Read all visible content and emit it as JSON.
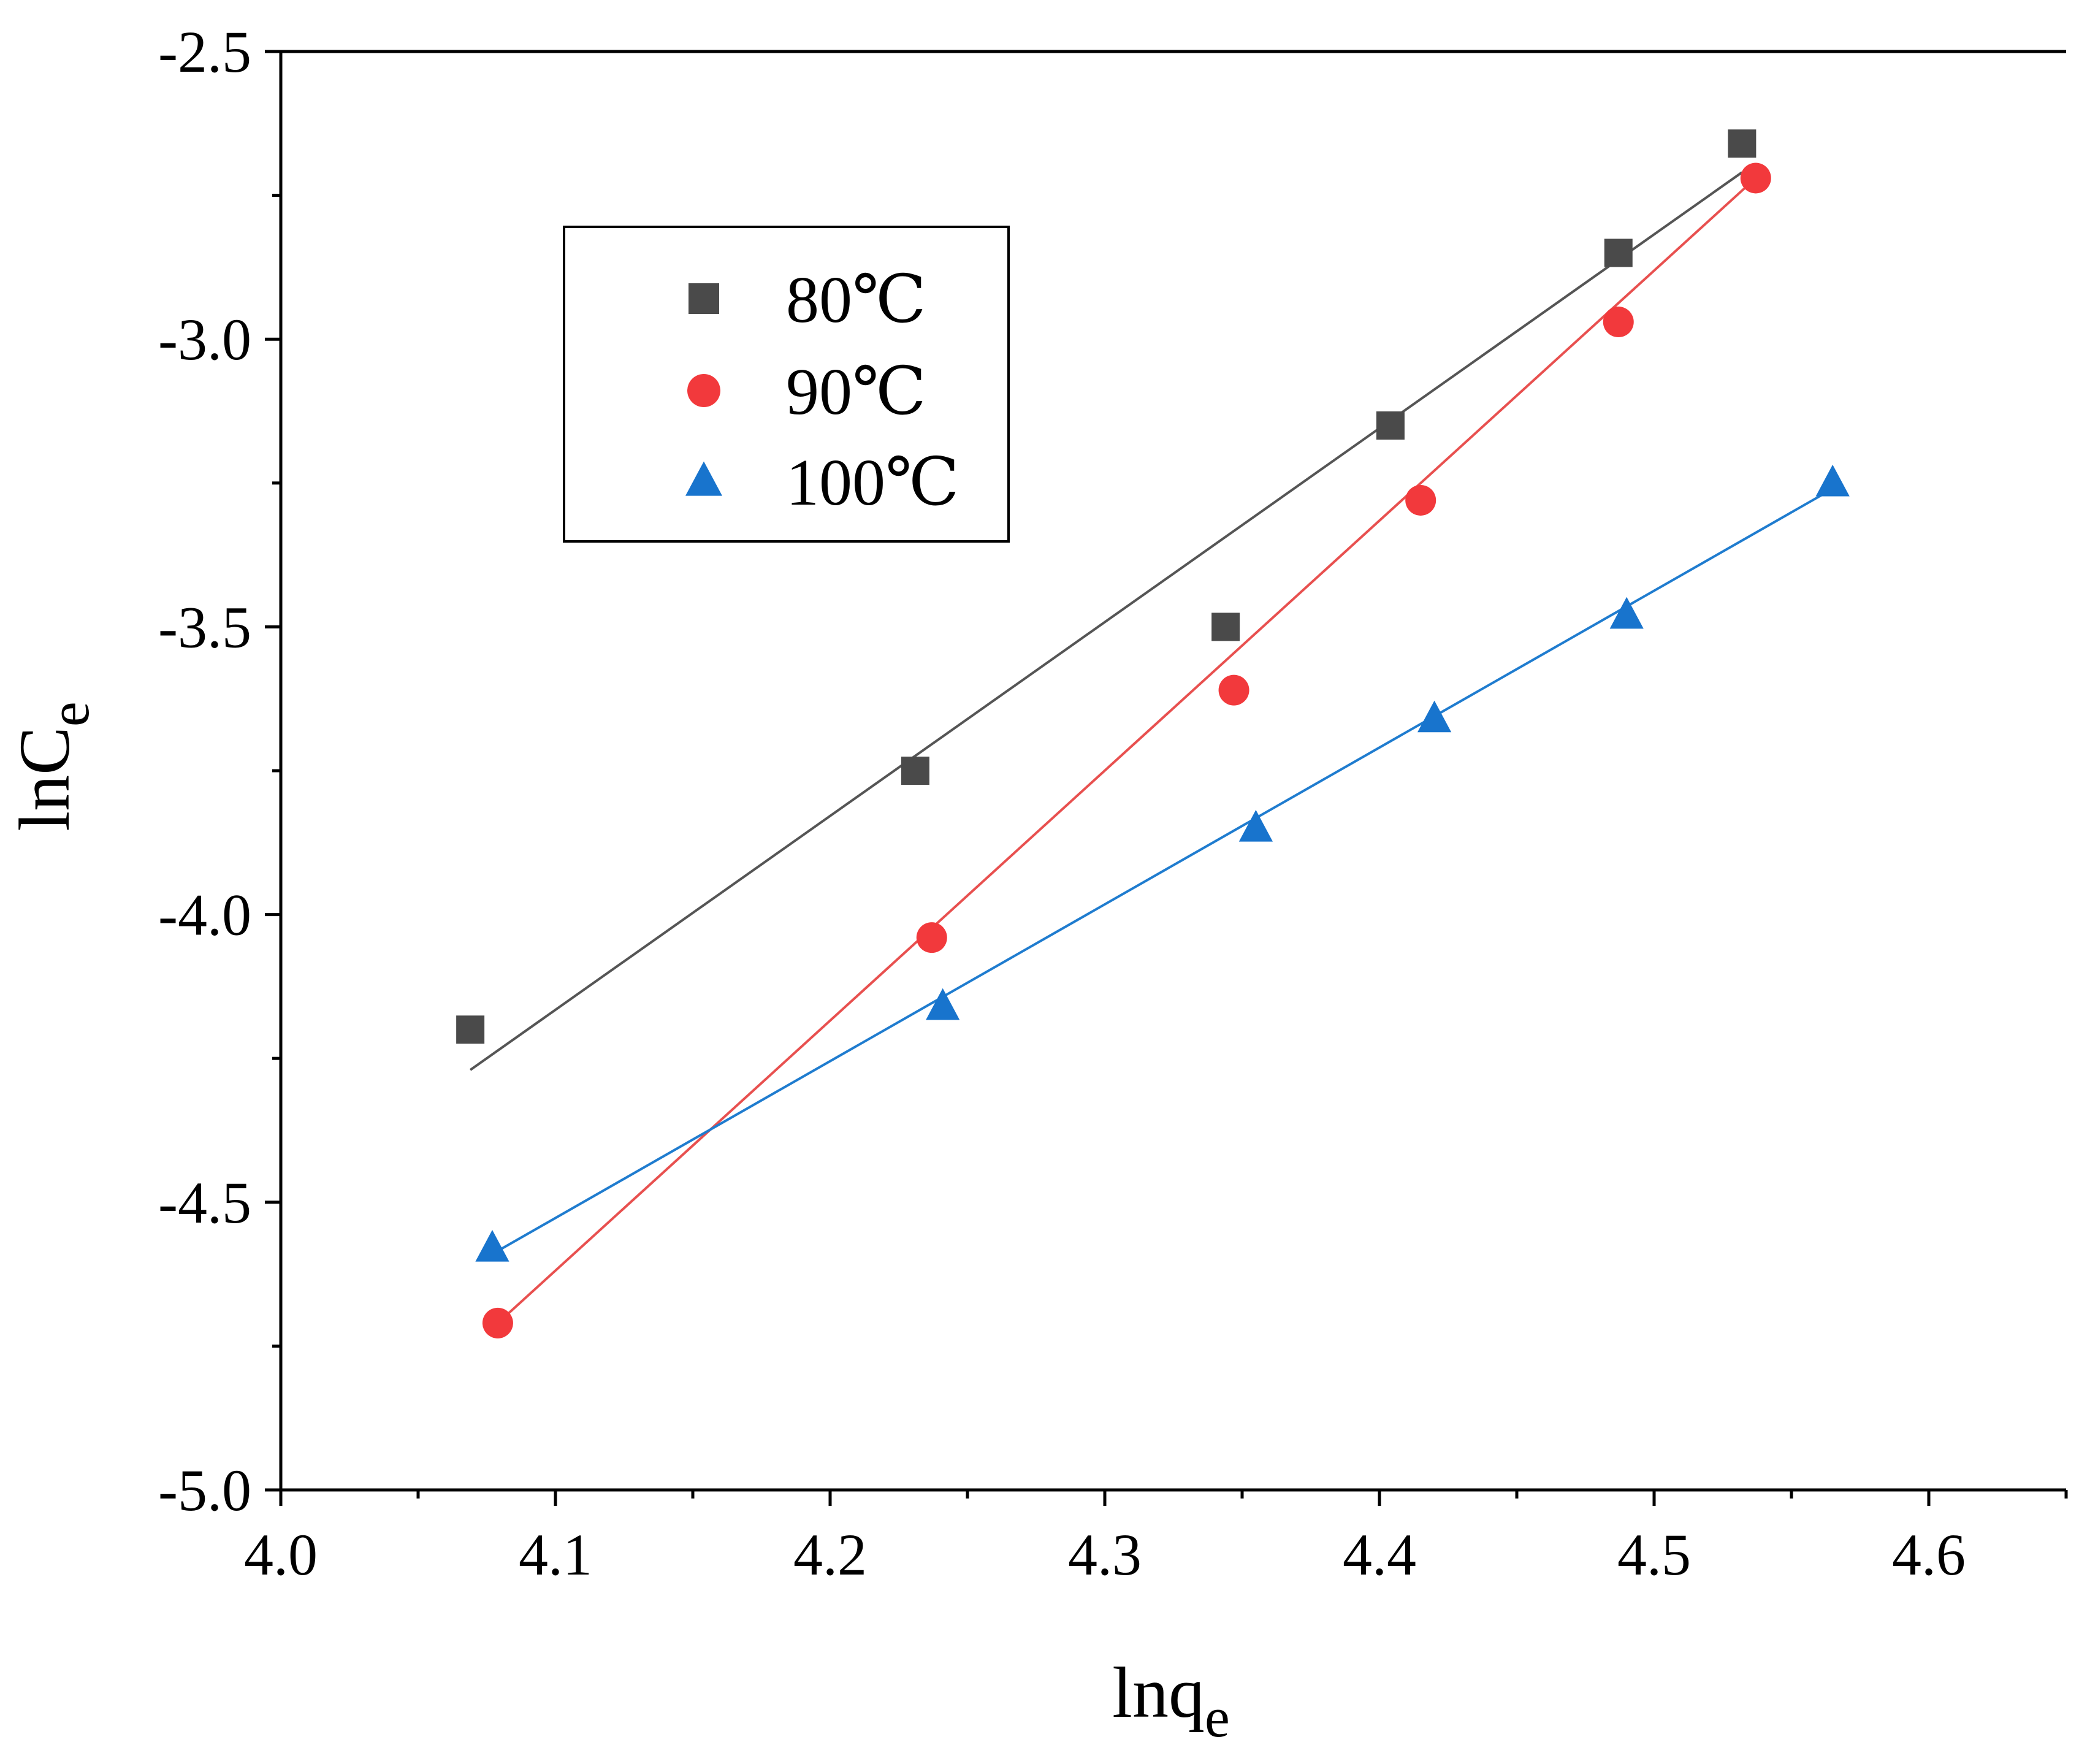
{
  "chart_data": {
    "type": "scatter",
    "title": "",
    "xlabel": "lnq",
    "xlabel_sub": "e",
    "ylabel": "lnC",
    "ylabel_sub": "e",
    "xlim": [
      4.0,
      4.65
    ],
    "ylim": [
      -5.0,
      -2.5
    ],
    "x_ticks": [
      4.0,
      4.1,
      4.2,
      4.3,
      4.4,
      4.5,
      4.6
    ],
    "y_ticks": [
      -5.0,
      -4.5,
      -4.0,
      -3.5,
      -3.0,
      -2.5
    ],
    "x_tick_labels": [
      "4.0",
      "4.1",
      "4.2",
      "4.3",
      "4.4",
      "4.5",
      "4.6"
    ],
    "y_tick_labels": [
      "-5.0",
      "-4.5",
      "-4.0",
      "-3.5",
      "-3.0",
      "-2.5"
    ],
    "grid": false,
    "legend_position": "top-left",
    "series": [
      {
        "name": "80℃",
        "marker": "square",
        "color": "#4a4a4a",
        "line_color": "#555555",
        "x": [
          4.069,
          4.231,
          4.344,
          4.404,
          4.487,
          4.532
        ],
        "y": [
          -4.2,
          -3.75,
          -3.5,
          -3.15,
          -2.85,
          -2.66
        ],
        "fit": {
          "x": [
            4.069,
            4.532
          ],
          "y": [
            -4.27,
            -2.71
          ]
        }
      },
      {
        "name": "90℃",
        "marker": "circle",
        "color": "#f2393c",
        "line_color": "#e8504f",
        "x": [
          4.079,
          4.237,
          4.347,
          4.415,
          4.487,
          4.537
        ],
        "y": [
          -4.71,
          -4.04,
          -3.61,
          -3.28,
          -2.97,
          -2.72
        ],
        "fit": {
          "x": [
            4.079,
            4.537
          ],
          "y": [
            -4.71,
            -2.72
          ]
        }
      },
      {
        "name": "100℃",
        "marker": "triangle",
        "color": "#1874cd",
        "line_color": "#1f7ccf",
        "x": [
          4.077,
          4.241,
          4.355,
          4.42,
          4.49,
          4.565
        ],
        "y": [
          -4.58,
          -4.16,
          -3.85,
          -3.66,
          -3.48,
          -3.25
        ],
        "fit": {
          "x": [
            4.077,
            4.565
          ],
          "y": [
            -4.59,
            -3.26
          ]
        }
      }
    ]
  }
}
